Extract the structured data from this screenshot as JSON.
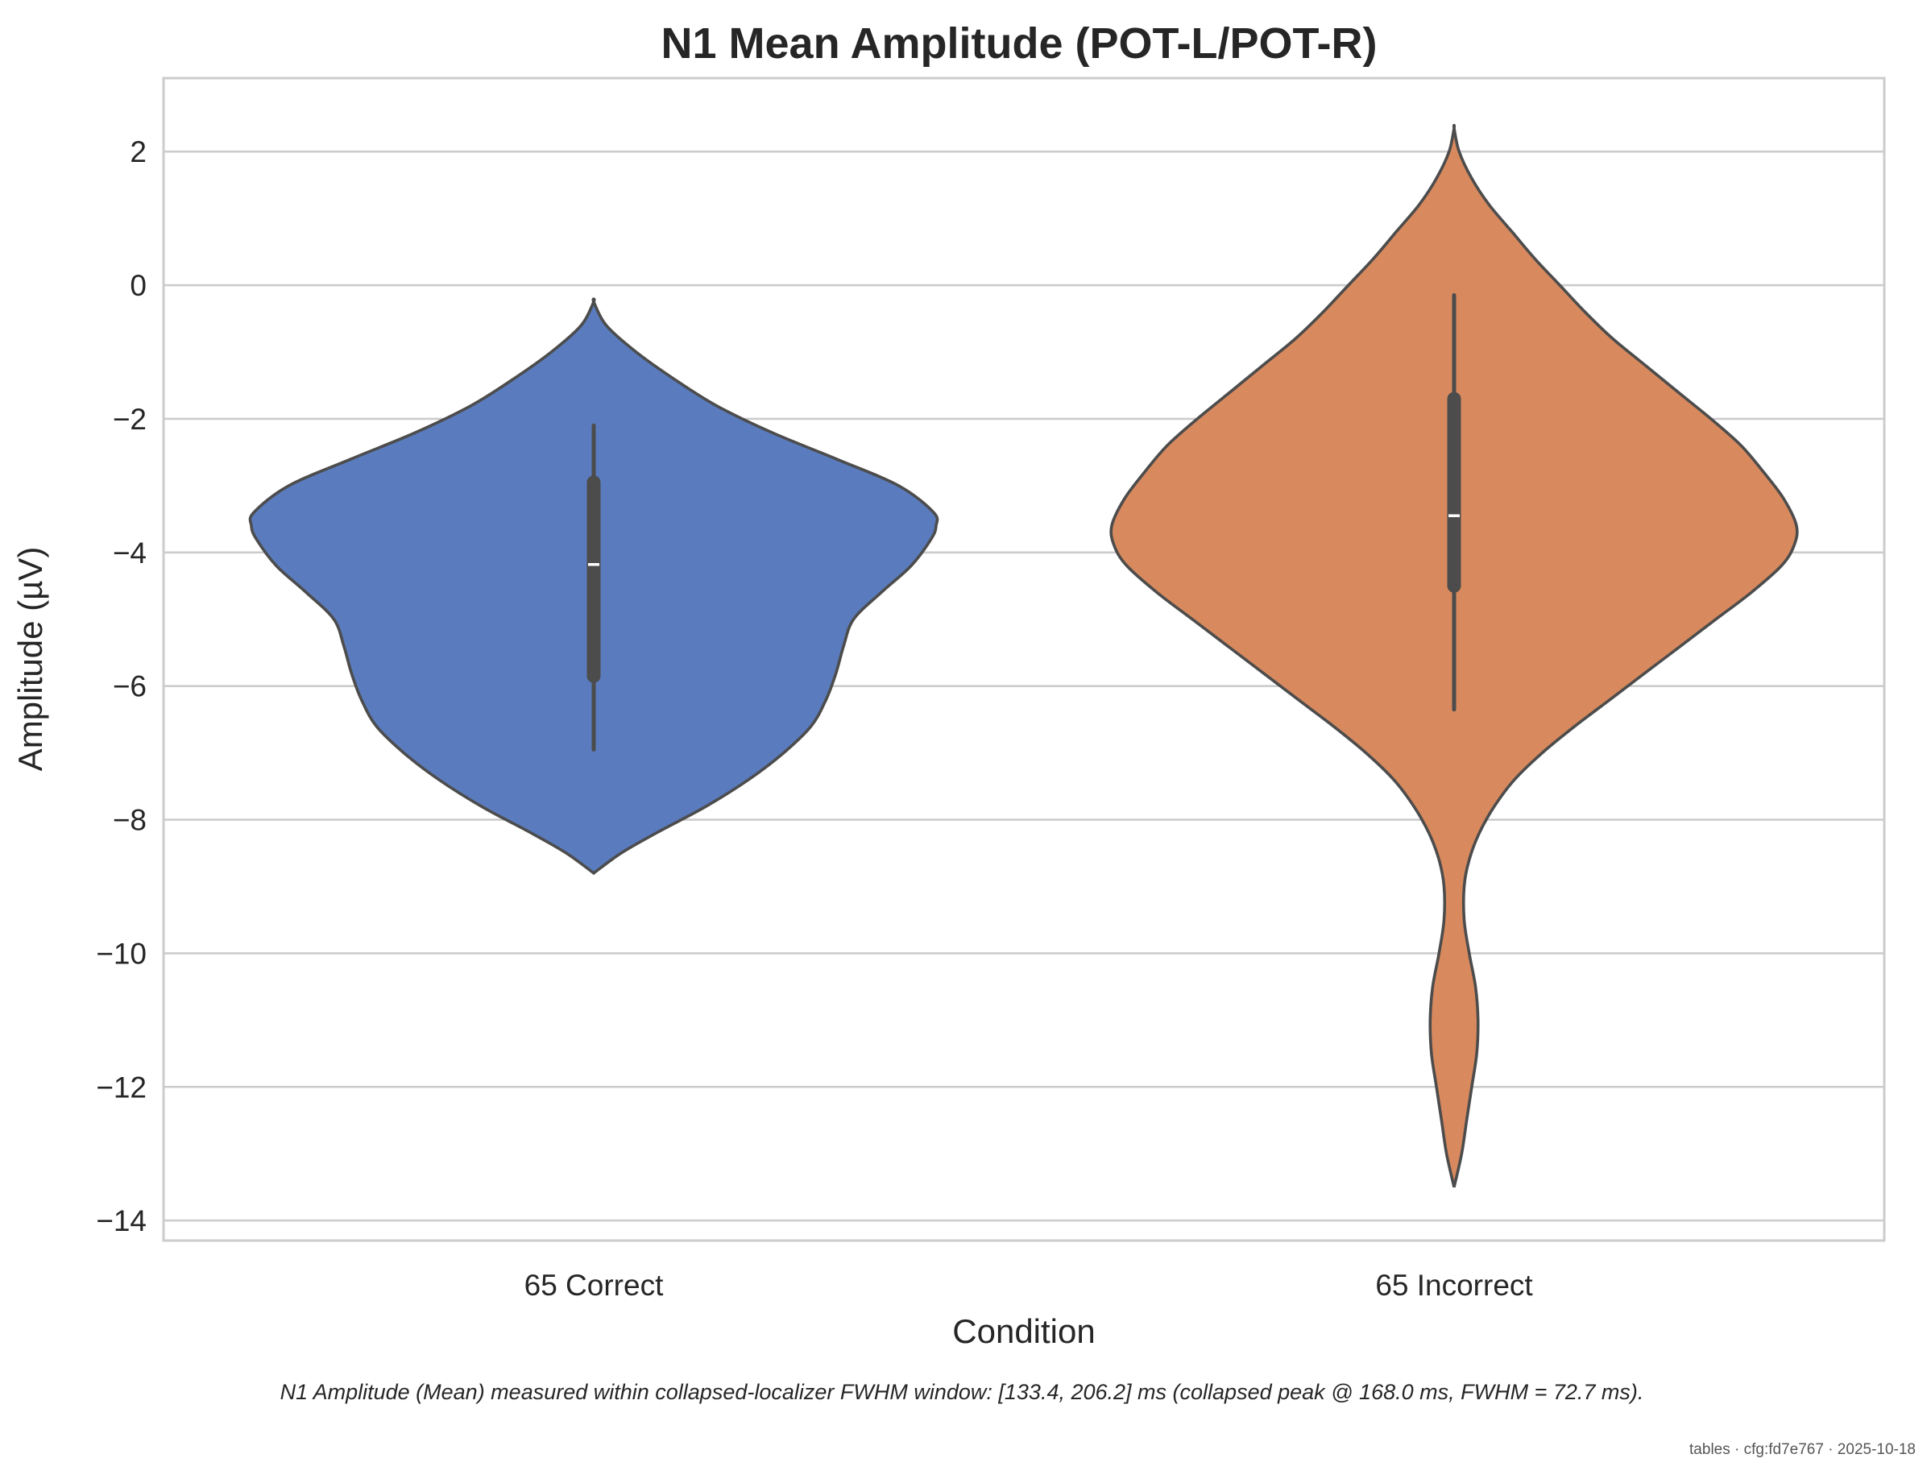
{
  "chart_data": {
    "type": "violin",
    "title": "N1 Mean Amplitude (POT-L/POT-R)",
    "xlabel": "Condition",
    "ylabel": "Amplitude (µV)",
    "ylim": [
      -14.3,
      3.1
    ],
    "yticks": [
      2,
      0,
      -2,
      -4,
      -6,
      -8,
      -10,
      -12,
      -14
    ],
    "ytick_labels": [
      "2",
      "0",
      "−2",
      "−4",
      "−6",
      "−8",
      "−10",
      "−12",
      "−14"
    ],
    "grid": true,
    "categories": [
      "65 Correct",
      "65 Incorrect"
    ],
    "colors": [
      "#5a7cbe",
      "#d88a5e"
    ],
    "violins": [
      {
        "category": "65 Correct",
        "min_extent": -8.8,
        "max_extent": -0.25,
        "whisker_low": -6.95,
        "whisker_high": -2.1,
        "q1": -5.85,
        "q3": -2.95,
        "median": -4.18,
        "density_profile": [
          [
            -8.8,
            0.0
          ],
          [
            -8.5,
            0.11
          ],
          [
            -8.2,
            0.25
          ],
          [
            -7.8,
            0.45
          ],
          [
            -7.4,
            0.62
          ],
          [
            -7.0,
            0.76
          ],
          [
            -6.6,
            0.87
          ],
          [
            -6.2,
            0.93
          ],
          [
            -5.8,
            0.97
          ],
          [
            -5.4,
            1.0
          ],
          [
            -5.0,
            1.04
          ],
          [
            -4.6,
            1.15
          ],
          [
            -4.2,
            1.27
          ],
          [
            -3.8,
            1.35
          ],
          [
            -3.6,
            1.37
          ],
          [
            -3.4,
            1.36
          ],
          [
            -3.0,
            1.22
          ],
          [
            -2.6,
            0.97
          ],
          [
            -2.2,
            0.71
          ],
          [
            -1.8,
            0.49
          ],
          [
            -1.4,
            0.32
          ],
          [
            -1.0,
            0.17
          ],
          [
            -0.6,
            0.05
          ],
          [
            -0.25,
            0.0
          ]
        ]
      },
      {
        "category": "65 Incorrect",
        "min_extent": -13.5,
        "max_extent": 2.35,
        "whisker_low": -6.35,
        "whisker_high": -0.15,
        "q1": -4.5,
        "q3": -1.7,
        "median": -3.45,
        "density_profile": [
          [
            -13.5,
            0.0
          ],
          [
            -13.0,
            0.03
          ],
          [
            -12.5,
            0.05
          ],
          [
            -12.0,
            0.07
          ],
          [
            -11.5,
            0.09
          ],
          [
            -11.0,
            0.095
          ],
          [
            -10.5,
            0.085
          ],
          [
            -10.0,
            0.06
          ],
          [
            -9.5,
            0.04
          ],
          [
            -9.0,
            0.04
          ],
          [
            -8.6,
            0.06
          ],
          [
            -8.2,
            0.1
          ],
          [
            -7.8,
            0.16
          ],
          [
            -7.4,
            0.24
          ],
          [
            -7.0,
            0.35
          ],
          [
            -6.6,
            0.48
          ],
          [
            -6.2,
            0.62
          ],
          [
            -5.8,
            0.76
          ],
          [
            -5.4,
            0.9
          ],
          [
            -5.0,
            1.04
          ],
          [
            -4.6,
            1.18
          ],
          [
            -4.2,
            1.3
          ],
          [
            -3.9,
            1.35
          ],
          [
            -3.6,
            1.36
          ],
          [
            -3.2,
            1.31
          ],
          [
            -2.8,
            1.23
          ],
          [
            -2.4,
            1.14
          ],
          [
            -2.0,
            1.02
          ],
          [
            -1.6,
            0.89
          ],
          [
            -1.2,
            0.76
          ],
          [
            -0.8,
            0.63
          ],
          [
            -0.4,
            0.52
          ],
          [
            0.0,
            0.42
          ],
          [
            0.4,
            0.32
          ],
          [
            0.8,
            0.23
          ],
          [
            1.2,
            0.14
          ],
          [
            1.6,
            0.07
          ],
          [
            2.0,
            0.02
          ],
          [
            2.35,
            0.0
          ]
        ]
      }
    ]
  },
  "caption": "N1 Amplitude (Mean) measured within collapsed-localizer FWHM window: [133.4, 206.2] ms (collapsed peak @ 168.0 ms, FWHM = 72.7 ms).",
  "footer": "tables · cfg:fd7e767 · 2025-10-18"
}
